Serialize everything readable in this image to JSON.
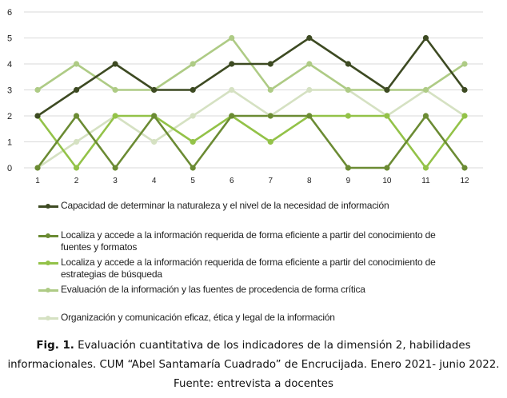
{
  "chart_data": {
    "type": "line",
    "categories": [
      "1",
      "2",
      "3",
      "4",
      "5",
      "6",
      "7",
      "8",
      "9",
      "10",
      "11",
      "12"
    ],
    "yticks": [
      "0",
      "1",
      "2",
      "3",
      "4",
      "5",
      "6"
    ],
    "ylim": [
      0,
      6
    ],
    "grid": true,
    "legend_position": "bottom",
    "series": [
      {
        "name": "Capacidad de determinar la naturaleza y el nivel de la necesidad de información",
        "color": "#3d4a22",
        "values": [
          2,
          3,
          4,
          3,
          3,
          4,
          4,
          5,
          4,
          3,
          5,
          3
        ]
      },
      {
        "name": "Localiza y accede a la información requerida de forma eficiente a partir del conocimiento de fuentes y formatos",
        "color": "#6b8b33",
        "values": [
          0,
          2,
          0,
          2,
          0,
          2,
          2,
          2,
          0,
          0,
          2,
          0
        ]
      },
      {
        "name": "Localiza y accede a la información requerida de forma eficiente a partir del conocimiento de estrategias de búsqueda",
        "color": "#93c248",
        "values": [
          2,
          0,
          2,
          2,
          1,
          2,
          1,
          2,
          2,
          2,
          0,
          2
        ]
      },
      {
        "name": "Evaluación de la información y las fuentes de procedencia de forma crítica",
        "color": "#aecb85",
        "values": [
          3,
          4,
          3,
          3,
          4,
          5,
          3,
          4,
          3,
          3,
          3,
          4
        ]
      },
      {
        "name": "Organización y comunicación eficaz, ética y legal de la información",
        "color": "#d5e1c2",
        "values": [
          0,
          1,
          2,
          1,
          2,
          3,
          2,
          3,
          3,
          2,
          3,
          2
        ]
      }
    ]
  },
  "caption": {
    "label": "Fig. 1.",
    "line1": "Evaluación cuantitativa de los indicadores de la dimensión 2, habilidades",
    "line2": "informacionales. CUM “Abel Santamaría Cuadrado” de Encrucijada. Enero 2021- junio 2022.",
    "line3": "Fuente: entrevista a docentes"
  }
}
